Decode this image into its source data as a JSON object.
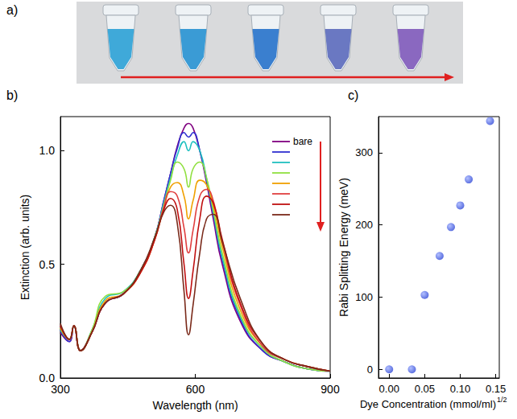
{
  "photo": {
    "label": "a)",
    "tube_colors": [
      "#3fa9d9",
      "#3a9bd5",
      "#3a7fcf",
      "#6a78c2",
      "#8a68c0"
    ]
  },
  "chart_data": [
    {
      "label": "b)",
      "type": "line",
      "xlabel": "Wavelength (nm)",
      "ylabel": "Extinction (arb. units)",
      "x": [
        300,
        320,
        330,
        345,
        370,
        400,
        440,
        480,
        510,
        530,
        545,
        560,
        575,
        585,
        595,
        610,
        625,
        640,
        660,
        700,
        750,
        800,
        850,
        900
      ],
      "series": [
        {
          "name": "bare",
          "color": "#800080",
          "values": [
            0.2,
            0.16,
            0.23,
            0.12,
            0.2,
            0.33,
            0.37,
            0.48,
            0.62,
            0.78,
            0.9,
            1.02,
            1.1,
            1.12,
            1.1,
            1.0,
            0.86,
            0.7,
            0.5,
            0.25,
            0.12,
            0.07,
            0.04,
            0.03
          ]
        },
        {
          "color": "#3030d0",
          "values": [
            0.21,
            0.16,
            0.23,
            0.12,
            0.2,
            0.33,
            0.37,
            0.48,
            0.62,
            0.78,
            0.9,
            1.01,
            1.08,
            1.06,
            1.08,
            1.0,
            0.87,
            0.72,
            0.52,
            0.26,
            0.12,
            0.07,
            0.04,
            0.03
          ]
        },
        {
          "color": "#20c0c0",
          "values": [
            0.21,
            0.17,
            0.23,
            0.12,
            0.21,
            0.35,
            0.38,
            0.48,
            0.62,
            0.77,
            0.88,
            0.98,
            1.04,
            1.0,
            1.04,
            1.0,
            0.88,
            0.73,
            0.53,
            0.27,
            0.13,
            0.07,
            0.04,
            0.03
          ]
        },
        {
          "color": "#90e040",
          "values": [
            0.22,
            0.17,
            0.23,
            0.12,
            0.21,
            0.36,
            0.38,
            0.48,
            0.62,
            0.76,
            0.87,
            0.95,
            0.92,
            0.84,
            0.92,
            0.95,
            0.88,
            0.74,
            0.55,
            0.28,
            0.13,
            0.07,
            0.04,
            0.03
          ]
        },
        {
          "color": "#f0a000",
          "values": [
            0.22,
            0.17,
            0.23,
            0.12,
            0.2,
            0.34,
            0.37,
            0.47,
            0.61,
            0.75,
            0.84,
            0.86,
            0.8,
            0.7,
            0.78,
            0.87,
            0.85,
            0.76,
            0.58,
            0.3,
            0.14,
            0.08,
            0.05,
            0.03
          ]
        },
        {
          "color": "#e04040",
          "values": [
            0.23,
            0.17,
            0.23,
            0.12,
            0.2,
            0.33,
            0.37,
            0.47,
            0.61,
            0.75,
            0.82,
            0.8,
            0.66,
            0.55,
            0.65,
            0.8,
            0.83,
            0.78,
            0.6,
            0.32,
            0.14,
            0.08,
            0.05,
            0.03
          ]
        },
        {
          "color": "#c01010",
          "values": [
            0.23,
            0.17,
            0.23,
            0.12,
            0.2,
            0.33,
            0.37,
            0.47,
            0.61,
            0.74,
            0.79,
            0.74,
            0.5,
            0.35,
            0.47,
            0.7,
            0.8,
            0.77,
            0.61,
            0.33,
            0.15,
            0.08,
            0.05,
            0.03
          ]
        },
        {
          "color": "#7a2a1a",
          "values": [
            0.24,
            0.17,
            0.23,
            0.12,
            0.2,
            0.33,
            0.37,
            0.48,
            0.62,
            0.73,
            0.76,
            0.68,
            0.38,
            0.19,
            0.32,
            0.55,
            0.7,
            0.72,
            0.6,
            0.35,
            0.15,
            0.08,
            0.05,
            0.03
          ]
        }
      ],
      "xlim": [
        300,
        900
      ],
      "xticks": [
        300,
        600,
        900
      ],
      "ylim": [
        0,
        1.15
      ],
      "yticks": [
        {
          "value": 0,
          "label": "0.0"
        },
        {
          "value": 0.5,
          "label": "0.5"
        },
        {
          "value": 1.0,
          "label": "1.0"
        }
      ],
      "grid": false,
      "legend": "upper right"
    },
    {
      "label": "c)",
      "type": "scatter",
      "xlabel": "Dye Concentration (mmol/ml)",
      "xlabel_exponent": "1/2",
      "ylabel": "Rabi Splitting Energy (meV)",
      "x": [
        0.0,
        0.032,
        0.05,
        0.071,
        0.087,
        0.1,
        0.112,
        0.142
      ],
      "values": [
        0,
        0,
        103,
        157,
        197,
        227,
        263,
        344
      ],
      "color": "#2d46d6",
      "marker": "circle",
      "xlim": [
        -0.015,
        0.155
      ],
      "xticks": [
        {
          "value": 0,
          "label": "0.00"
        },
        {
          "value": 0.05,
          "label": "0.05"
        },
        {
          "value": 0.1,
          "label": "0.10"
        },
        {
          "value": 0.15,
          "label": "0.15"
        }
      ],
      "ylim": [
        -12,
        350
      ],
      "yticks": [
        0,
        100,
        200,
        300
      ],
      "grid": false
    }
  ]
}
